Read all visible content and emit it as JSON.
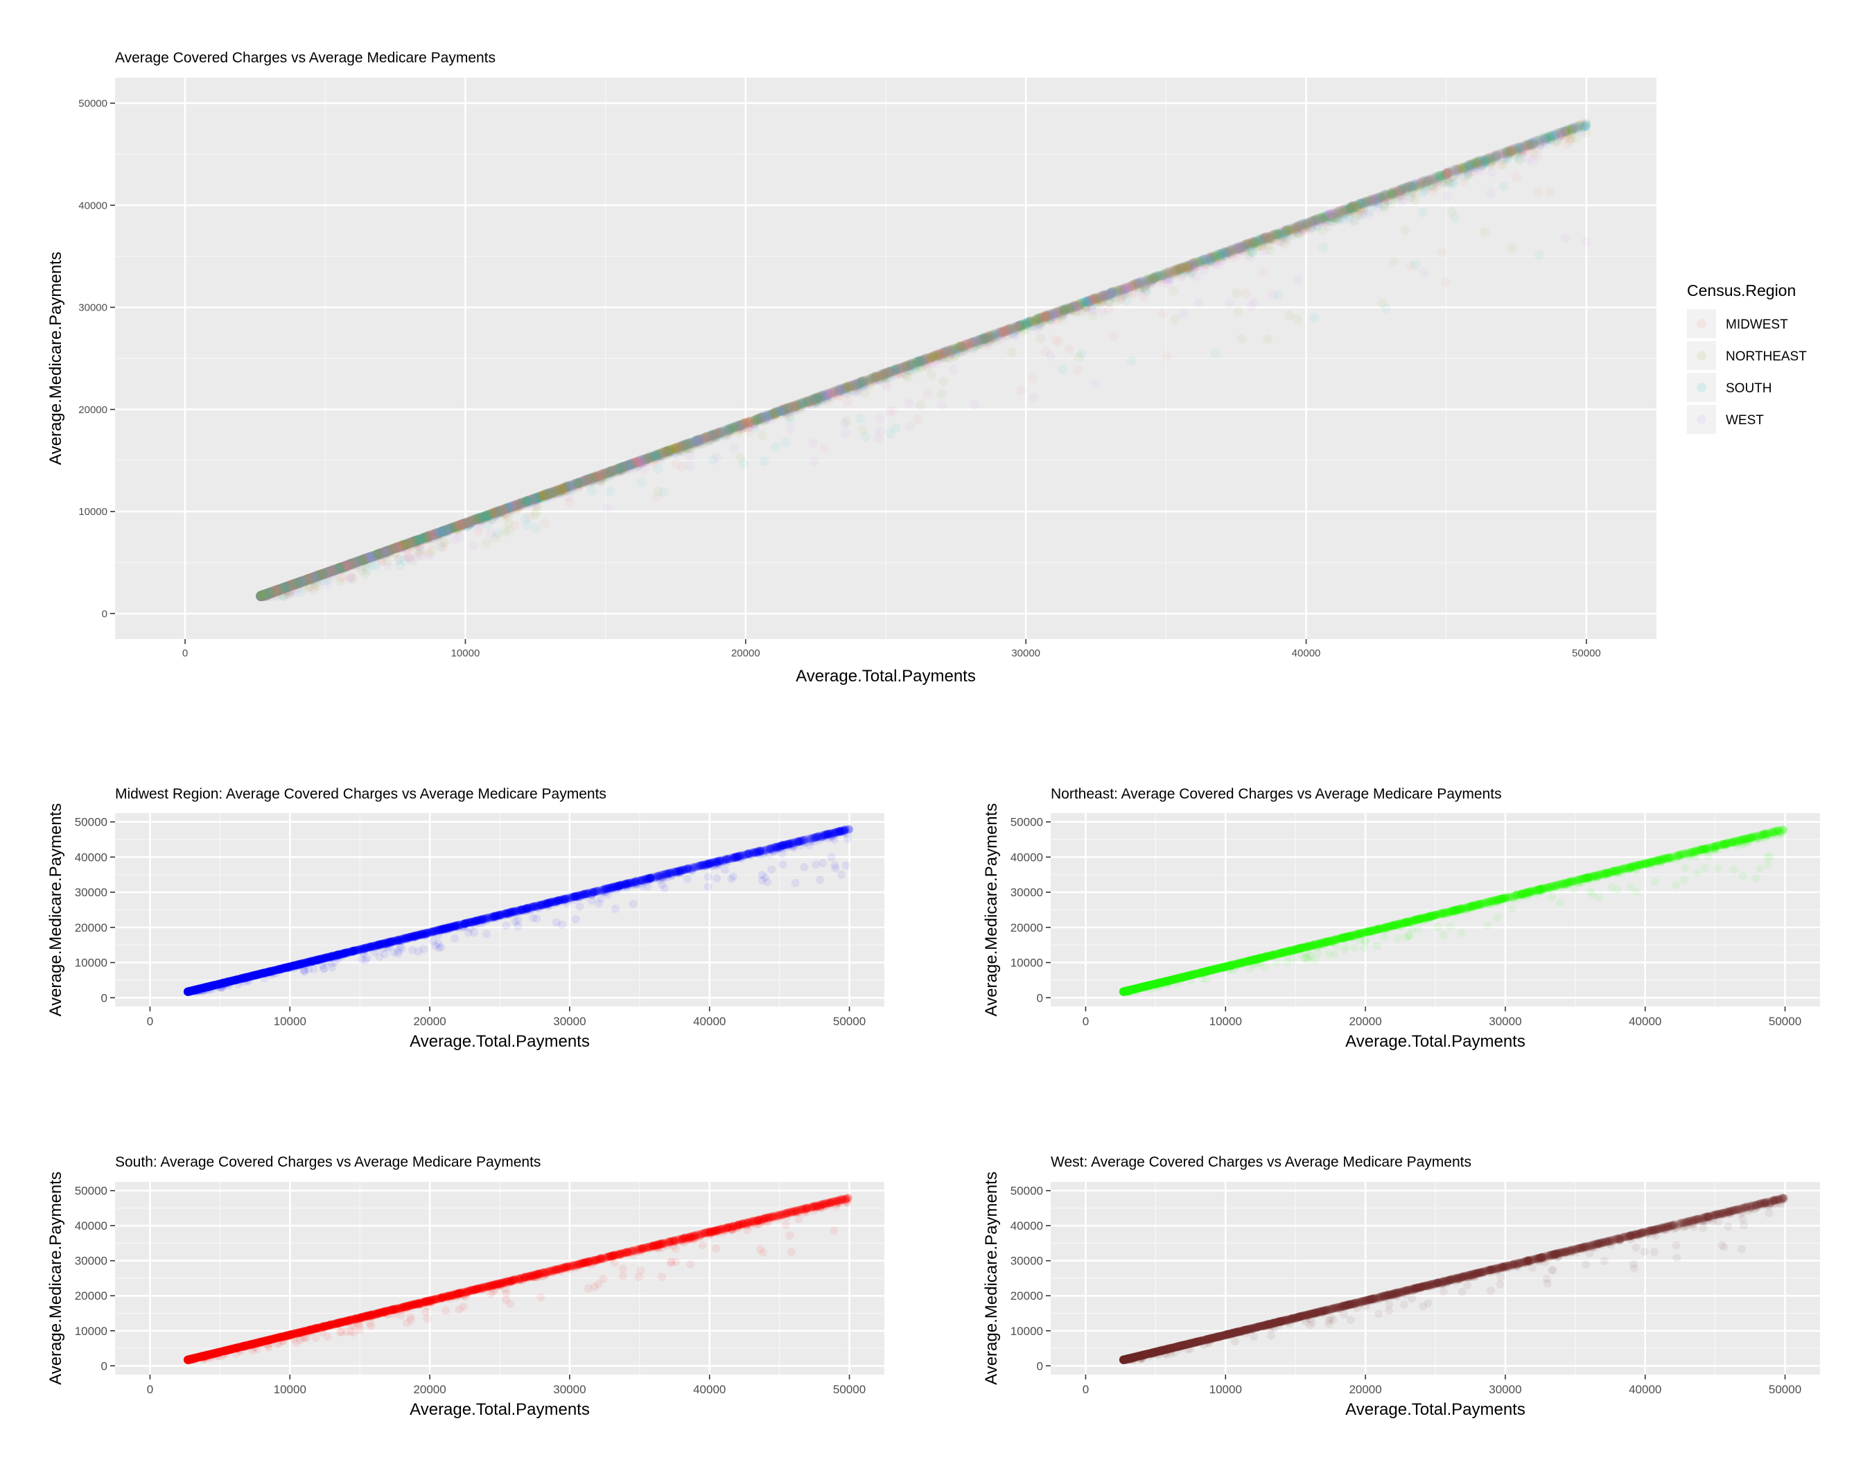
{
  "chart_data": [
    {
      "type": "scatter",
      "title": "Average Covered Charges vs Average Medicare Payments",
      "xlabel": "Average.Total.Payments",
      "ylabel": "Average.Medicare.Payments",
      "xlim": [
        -2500,
        52500
      ],
      "ylim": [
        -2500,
        52500
      ],
      "xticks": [
        0,
        10000,
        20000,
        30000,
        40000,
        50000
      ],
      "yticks": [
        0,
        10000,
        20000,
        30000,
        40000,
        50000
      ],
      "grid": true,
      "legend": {
        "title": "Census.Region",
        "position": "right",
        "entries": [
          "MIDWEST",
          "NORTHEAST",
          "SOUTH",
          "WEST"
        ]
      },
      "series": [
        {
          "name": "MIDWEST",
          "color": "#f8766d"
        },
        {
          "name": "NORTHEAST",
          "color": "#7cae00"
        },
        {
          "name": "SOUTH",
          "color": "#00bfc4"
        },
        {
          "name": "WEST",
          "color": "#c77cff"
        }
      ],
      "trend": {
        "upper_edge": [
          [
            2700,
            1800
          ],
          [
            10000,
            9400
          ],
          [
            20000,
            19000
          ],
          [
            30000,
            29000
          ],
          [
            40000,
            39000
          ],
          [
            50000,
            49000
          ]
        ]
      }
    },
    {
      "type": "scatter",
      "title": "Midwest Region: Average Covered Charges vs Average Medicare Payments",
      "xlabel": "Average.Total.Payments",
      "ylabel": "Average.Medicare.Payments",
      "xlim": [
        -2500,
        52500
      ],
      "ylim": [
        -2500,
        52500
      ],
      "xticks": [
        0,
        10000,
        20000,
        30000,
        40000,
        50000
      ],
      "yticks": [
        0,
        10000,
        20000,
        30000,
        40000,
        50000
      ],
      "grid": true,
      "series": [
        {
          "color": "#0000ff"
        }
      ]
    },
    {
      "type": "scatter",
      "title": "Northeast: Average Covered Charges vs Average Medicare Payments",
      "xlabel": "Average.Total.Payments",
      "ylabel": "Average.Medicare.Payments",
      "xlim": [
        -2500,
        52500
      ],
      "ylim": [
        -2500,
        52500
      ],
      "xticks": [
        0,
        10000,
        20000,
        30000,
        40000,
        50000
      ],
      "yticks": [
        0,
        10000,
        20000,
        30000,
        40000,
        50000
      ],
      "grid": true,
      "series": [
        {
          "color": "#22ff00"
        }
      ]
    },
    {
      "type": "scatter",
      "title": "South: Average Covered Charges vs Average Medicare Payments",
      "xlabel": "Average.Total.Payments",
      "ylabel": "Average.Medicare.Payments",
      "xlim": [
        -2500,
        52500
      ],
      "ylim": [
        -2500,
        52500
      ],
      "xticks": [
        0,
        10000,
        20000,
        30000,
        40000,
        50000
      ],
      "yticks": [
        0,
        10000,
        20000,
        30000,
        40000,
        50000
      ],
      "grid": true,
      "series": [
        {
          "color": "#ff0000"
        }
      ]
    },
    {
      "type": "scatter",
      "title": "West: Average Covered Charges vs Average Medicare Payments",
      "xlabel": "Average.Total.Payments",
      "ylabel": "Average.Medicare.Payments",
      "xlim": [
        -2500,
        52500
      ],
      "ylim": [
        -2500,
        52500
      ],
      "xticks": [
        0,
        10000,
        20000,
        30000,
        40000,
        50000
      ],
      "yticks": [
        0,
        10000,
        20000,
        30000,
        40000,
        50000
      ],
      "grid": true,
      "series": [
        {
          "color": "#722a2a"
        }
      ]
    }
  ]
}
